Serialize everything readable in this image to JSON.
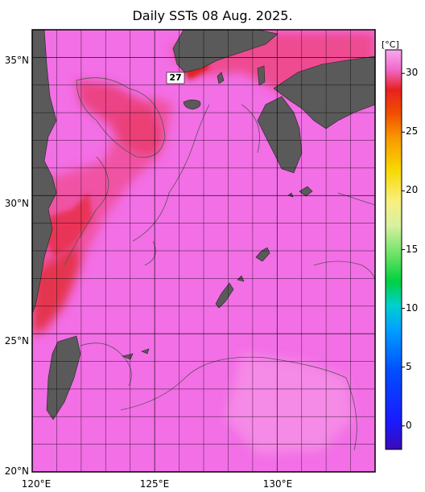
{
  "title": "Daily SSTs 08 Aug. 2025.",
  "map": {
    "lon_range": [
      120,
      134
    ],
    "lat_range": [
      20,
      36
    ],
    "lat_labels": [
      "20°N",
      "25°N",
      "30°N",
      "35°N"
    ],
    "lon_labels": [
      "120°E",
      "125°E",
      "130°E"
    ],
    "contour_label": "27"
  },
  "colorbar": {
    "unit": "[°C]",
    "ticks": [
      "0",
      "5",
      "10",
      "15",
      "20",
      "25",
      "30"
    ],
    "range": [
      -2,
      32
    ]
  },
  "colors": {
    "ocean_main": "#f36fe6",
    "warm_zone": "#ef4a8e",
    "hot_zone": "#e63030",
    "land": "#5a5a5a"
  }
}
